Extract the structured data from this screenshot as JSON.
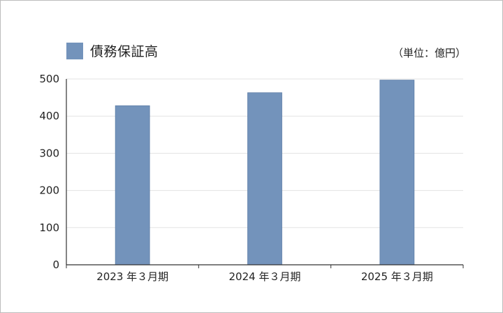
{
  "chart_data": {
    "type": "bar",
    "categories": [
      "2023 年３月期",
      "2024 年３月期",
      "2025 年３月期"
    ],
    "series": [
      {
        "name": "債務保証高",
        "values": [
          428,
          463,
          497
        ]
      }
    ],
    "unit_label": "（単位：億円）",
    "ylim": [
      0,
      500
    ],
    "yticks": [
      0,
      100,
      200,
      300,
      400,
      500
    ],
    "grid": true,
    "legend_position": "top-left",
    "colors": {
      "bar": "#7393bb",
      "bar_edge": "#5f7fa8",
      "grid": "#e3e3e3",
      "axis": "#333333"
    }
  }
}
